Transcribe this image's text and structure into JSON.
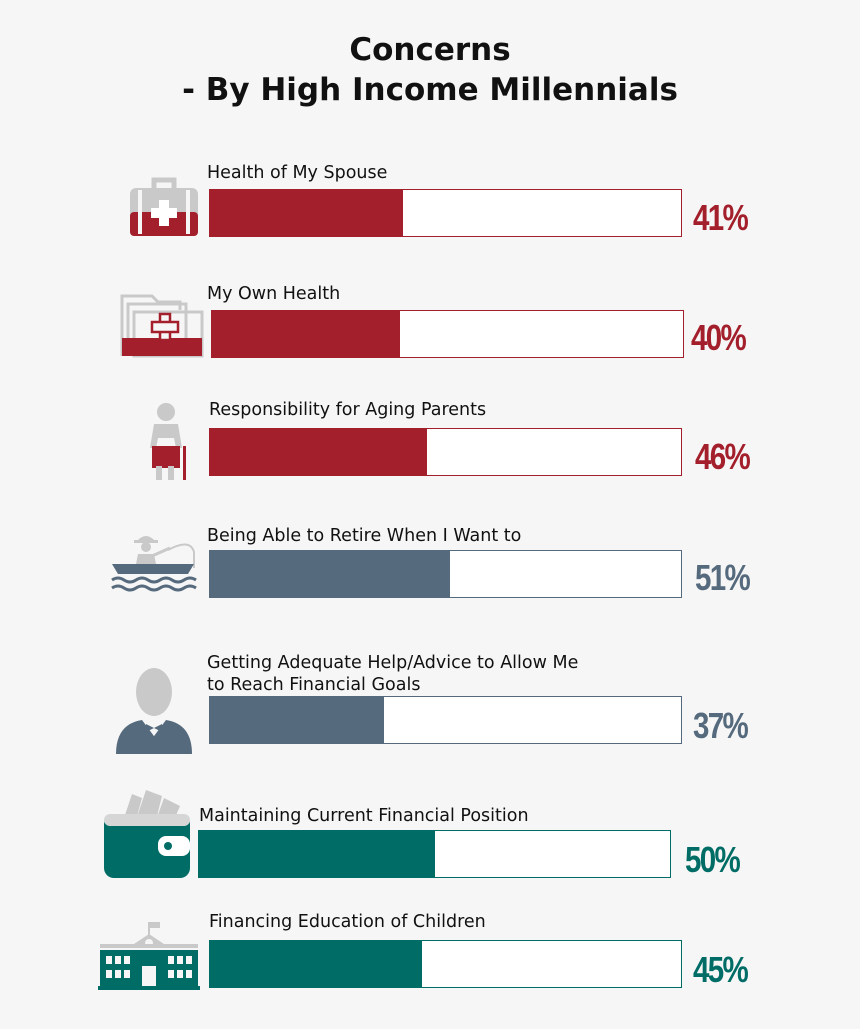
{
  "title_line1": "Concerns",
  "title_line2": "- By High Income Millennials",
  "colors": {
    "red": "#a31f2c",
    "slate": "#566a7d",
    "teal": "#006c66",
    "icon_grey": "#c9c9c9"
  },
  "chart_data": {
    "type": "bar",
    "orientation": "horizontal",
    "title": "Concerns - By High Income Millennials",
    "unit": "%",
    "xlim": [
      0,
      100
    ],
    "categories": [
      "Health of My Spouse",
      "My Own Health",
      "Responsibility for Aging Parents",
      "Being Able to Retire When I Want to",
      "Getting Adequate Help/Advice to Allow Me to Reach Financial Goals",
      "Maintaining Current Financial Position",
      "Financing Education of Children"
    ],
    "values": [
      41,
      40,
      46,
      51,
      37,
      50,
      45
    ]
  },
  "rows": [
    {
      "label_lines": [
        "Health of My Spouse"
      ],
      "value": 41,
      "pct_label": "41%",
      "color": "#a31f2c",
      "icon": "first-aid-kit-icon"
    },
    {
      "label_lines": [
        "My Own Health"
      ],
      "value": 40,
      "pct_label": "40%",
      "color": "#a31f2c",
      "icon": "medical-folder-icon"
    },
    {
      "label_lines": [
        "Responsibility for Aging Parents"
      ],
      "value": 46,
      "pct_label": "46%",
      "color": "#a31f2c",
      "icon": "elderly-person-icon"
    },
    {
      "label_lines": [
        "Being Able to Retire When I Want to"
      ],
      "value": 51,
      "pct_label": "51%",
      "color": "#566a7d",
      "icon": "fishing-boat-icon"
    },
    {
      "label_lines": [
        "Getting Adequate Help/Advice to Allow Me",
        "to Reach Financial Goals"
      ],
      "value": 37,
      "pct_label": "37%",
      "color": "#566a7d",
      "icon": "advisor-icon"
    },
    {
      "label_lines": [
        "Maintaining Current Financial Position"
      ],
      "value": 50,
      "pct_label": "50%",
      "color": "#006c66",
      "icon": "wallet-icon"
    },
    {
      "label_lines": [
        "Financing Education of Children"
      ],
      "value": 45,
      "pct_label": "45%",
      "color": "#006c66",
      "icon": "school-icon"
    }
  ]
}
